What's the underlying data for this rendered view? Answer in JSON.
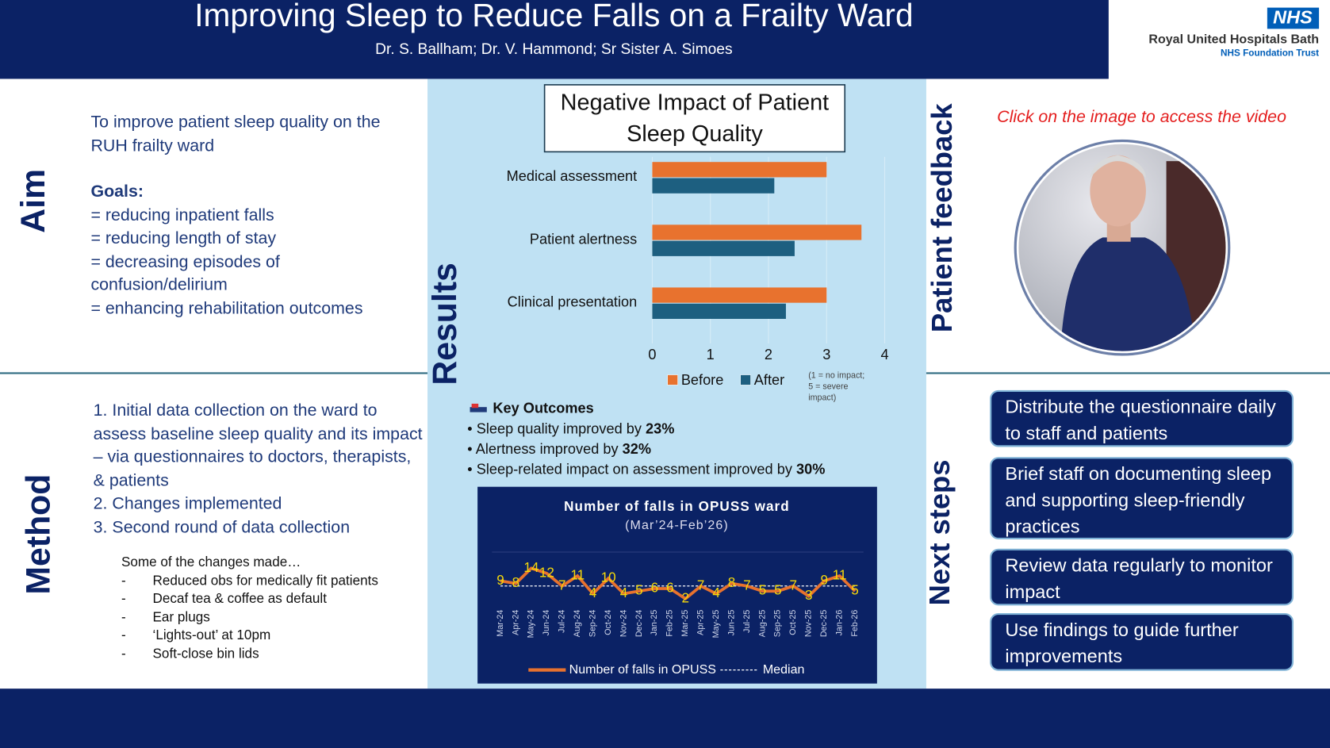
{
  "header": {
    "title": "Improving Sleep to Reduce Falls on a Frailty Ward",
    "authors": "Dr. S. Ballham; Dr. V. Hammond; Sr Sister A. Simoes"
  },
  "logo": {
    "badge": "NHS",
    "name": "Royal United Hospitals Bath",
    "subtitle": "NHS Foundation Trust"
  },
  "aim": {
    "heading": "Aim",
    "statement": "To improve patient sleep quality on the RUH frailty ward",
    "goals_heading": "Goals:",
    "goals": [
      "= reducing inpatient falls",
      "= reducing length of stay",
      "= decreasing episodes of confusion/delirium",
      "= enhancing rehabilitation outcomes"
    ]
  },
  "method": {
    "heading": "Method",
    "steps": [
      "1. Initial data collection on the ward to assess baseline sleep quality and its impact – via questionnaires to doctors, therapists, & patients",
      "2. Changes implemented",
      "3. Second round of data collection"
    ],
    "changes_heading": "Some of the changes made…",
    "changes": [
      "Reduced obs for medically fit patients",
      "Decaf tea & coffee as default",
      "Ear plugs",
      "‘Lights-out’ at 10pm",
      "Soft-close bin lids"
    ]
  },
  "results": {
    "heading": "Results",
    "outcomes_heading": "Key Outcomes",
    "outcomes": [
      {
        "text": "Sleep quality improved by",
        "value": "23%"
      },
      {
        "text": "Alertness improved by",
        "value": "32%"
      },
      {
        "text": "Sleep-related impact on assessment improved by",
        "value": "30%"
      }
    ]
  },
  "chart_data": [
    {
      "type": "hbar",
      "title": "Negative Impact of Patient Sleep Quality",
      "note": "(1 = no impact; 5 = severe impact)",
      "categories": [
        "Medical assessment",
        "Patient alertness",
        "Clinical presentation"
      ],
      "series": [
        {
          "name": "Before",
          "color": "#e8722e",
          "values": [
            3.0,
            3.6,
            3.0
          ]
        },
        {
          "name": "After",
          "color": "#1d5f80",
          "values": [
            2.1,
            2.45,
            2.3
          ]
        }
      ],
      "xlim": [
        0,
        4
      ],
      "xticks": [
        0,
        1,
        2,
        3,
        4
      ],
      "grid": true,
      "legend": "bottom"
    },
    {
      "type": "line",
      "title": "Number of falls in OPUSS ward",
      "subtitle": "(Mar’24-Feb’26)",
      "categories": [
        "Mar-24",
        "Apr-24",
        "May-24",
        "Jun-24",
        "Jul-24",
        "Aug-24",
        "Sep-24",
        "Oct-24",
        "Nov-24",
        "Dec-24",
        "Jan-25",
        "Feb-25",
        "Mar-25",
        "Apr-25",
        "May-25",
        "Jun-25",
        "Jul-25",
        "Aug-25",
        "Sep-25",
        "Oct-25",
        "Nov-25",
        "Dec-25",
        "Jan-26",
        "Feb-26"
      ],
      "series": [
        {
          "name": "Number of falls in OPUSS",
          "color": "#e8722e",
          "values": [
            9,
            8,
            14,
            12,
            7,
            11,
            4,
            10,
            4,
            5,
            6,
            6,
            2,
            7,
            4,
            8,
            7,
            5,
            5,
            7,
            3,
            9,
            11,
            5
          ]
        },
        {
          "name": "Median",
          "color": "#ffffff",
          "values": [
            7,
            7,
            7,
            7,
            7,
            7,
            7,
            7,
            7,
            7,
            7,
            7,
            7,
            7,
            7,
            7,
            7,
            7,
            7,
            7,
            7,
            7,
            7,
            7
          ]
        }
      ],
      "label_color": "#f5d90a",
      "ylim": [
        0,
        20
      ],
      "legend": "bottom"
    }
  ],
  "feedback": {
    "heading": "Patient feedback",
    "link": "Click on the image to access the video"
  },
  "next_steps": {
    "heading": "Next steps",
    "items": [
      "Distribute the questionnaire daily to staff and patients",
      "Brief staff on documenting sleep and supporting sleep-friendly practices",
      "Review data regularly to monitor impact",
      "Use findings to guide further improvements"
    ]
  }
}
